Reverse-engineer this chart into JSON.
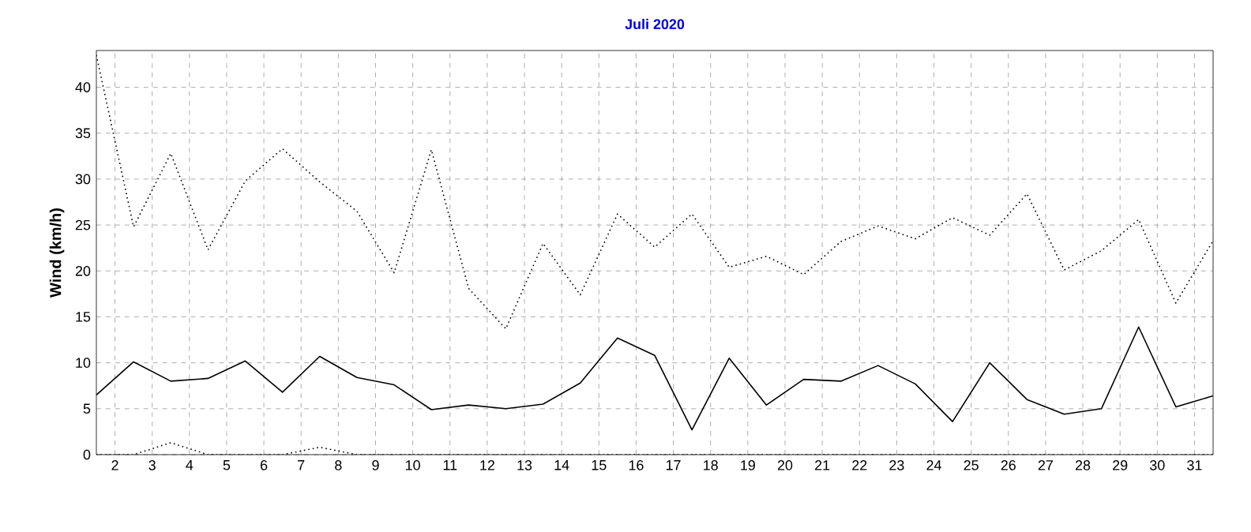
{
  "chart_data": {
    "type": "line",
    "title": "Juli 2020",
    "ylabel": "Wind (km/h)",
    "x": [
      1,
      2,
      3,
      4,
      5,
      6,
      7,
      8,
      9,
      10,
      11,
      12,
      13,
      14,
      15,
      16,
      17,
      18,
      19,
      20,
      21,
      22,
      23,
      24,
      25,
      26,
      27,
      28,
      29,
      30,
      31
    ],
    "series": [
      {
        "color": "#000000",
        "line_style": "dotted",
        "values": [
          43.5,
          24.8,
          32.8,
          22.3,
          29.8,
          33.3,
          29.7,
          26.5,
          19.8,
          33.2,
          18.1,
          13.7,
          23.0,
          17.4,
          26.2,
          22.6,
          26.2,
          20.4,
          21.6,
          19.6,
          23.2,
          24.9,
          23.5,
          25.8,
          23.9,
          28.4,
          20.1,
          22.2,
          25.6,
          16.5,
          23.3
        ]
      },
      {
        "color": "#000000",
        "line_style": "solid",
        "values": [
          6.5,
          10.1,
          8.0,
          8.3,
          10.2,
          6.8,
          10.7,
          8.4,
          7.6,
          4.9,
          5.4,
          5.0,
          5.5,
          7.8,
          12.7,
          10.8,
          2.7,
          10.5,
          5.4,
          8.2,
          8.0,
          9.7,
          7.7,
          3.6,
          10.0,
          6.0,
          4.4,
          5.0,
          13.9,
          5.2,
          6.4
        ]
      },
      {
        "color": "#000000",
        "line_style": "dotted",
        "values": [
          0,
          0,
          1.3,
          0,
          0,
          0,
          0.8,
          0,
          0,
          0,
          0,
          0,
          0,
          0,
          0,
          0,
          0,
          0,
          0,
          0,
          0,
          0,
          0,
          0,
          0,
          0,
          0,
          0,
          0,
          0,
          0
        ]
      }
    ],
    "xlim": [
      1,
      31
    ],
    "ylim": [
      0,
      44
    ],
    "xticks": [
      {
        "value": 1.5,
        "label": "2"
      },
      {
        "value": 2.5,
        "label": "3"
      },
      {
        "value": 3.5,
        "label": "4"
      },
      {
        "value": 4.5,
        "label": "5"
      },
      {
        "value": 5.5,
        "label": "6"
      },
      {
        "value": 6.5,
        "label": "7"
      },
      {
        "value": 7.5,
        "label": "8"
      },
      {
        "value": 8.5,
        "label": "9"
      },
      {
        "value": 9.5,
        "label": "10"
      },
      {
        "value": 10.5,
        "label": "11"
      },
      {
        "value": 11.5,
        "label": "12"
      },
      {
        "value": 12.5,
        "label": "13"
      },
      {
        "value": 13.5,
        "label": "14"
      },
      {
        "value": 14.5,
        "label": "15"
      },
      {
        "value": 15.5,
        "label": "16"
      },
      {
        "value": 16.5,
        "label": "17"
      },
      {
        "value": 17.5,
        "label": "18"
      },
      {
        "value": 18.5,
        "label": "19"
      },
      {
        "value": 19.5,
        "label": "20"
      },
      {
        "value": 20.5,
        "label": "21"
      },
      {
        "value": 21.5,
        "label": "22"
      },
      {
        "value": 22.5,
        "label": "23"
      },
      {
        "value": 23.5,
        "label": "24"
      },
      {
        "value": 24.5,
        "label": "25"
      },
      {
        "value": 25.5,
        "label": "26"
      },
      {
        "value": 26.5,
        "label": "27"
      },
      {
        "value": 27.5,
        "label": "28"
      },
      {
        "value": 28.5,
        "label": "29"
      },
      {
        "value": 29.5,
        "label": "30"
      },
      {
        "value": 30.5,
        "label": "31"
      }
    ],
    "yticks": [
      0,
      5,
      10,
      15,
      20,
      25,
      30,
      35,
      40
    ],
    "grid": true
  }
}
